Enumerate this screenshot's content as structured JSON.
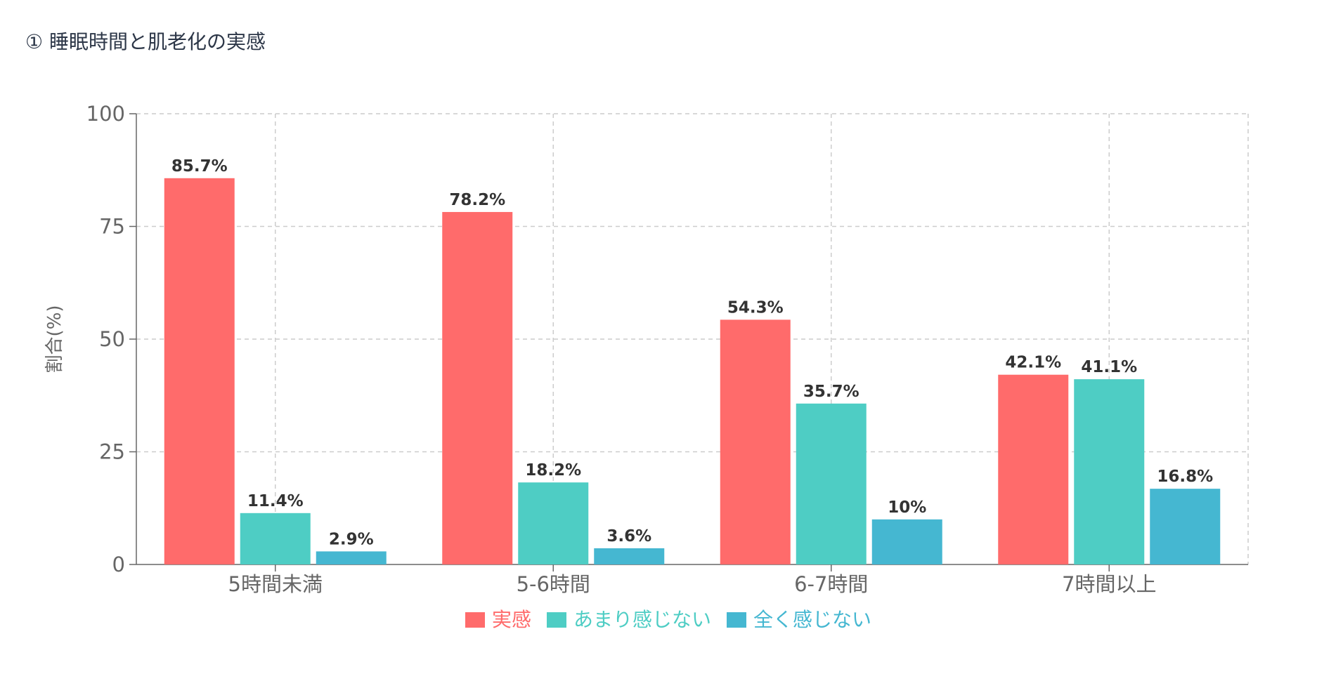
{
  "page": {
    "title": "① 睡眠時間と肌老化の実感"
  },
  "chart_data": {
    "type": "bar",
    "title": "① 睡眠時間と肌老化の実感",
    "xlabel": "",
    "ylabel": "割合(%)",
    "ylim": [
      0,
      100
    ],
    "yticks": [
      "0",
      "25",
      "50",
      "75",
      "100"
    ],
    "categories": [
      "5時間未満",
      "5-6時間",
      "6-7時間",
      "7時間以上"
    ],
    "grid": true,
    "legend_position": "bottom-center",
    "series": [
      {
        "name": "実感",
        "color": "#ff6b6b",
        "values": [
          85.7,
          78.2,
          54.3,
          42.1
        ],
        "labels": [
          "85.7%",
          "78.2%",
          "54.3%",
          "42.1%"
        ]
      },
      {
        "name": "あまり感じない",
        "color": "#4ecdc4",
        "values": [
          11.4,
          18.2,
          35.7,
          41.1
        ],
        "labels": [
          "11.4%",
          "18.2%",
          "35.7%",
          "41.1%"
        ]
      },
      {
        "name": "全く感じない",
        "color": "#45b7d1",
        "values": [
          2.9,
          3.6,
          10,
          16.8
        ],
        "labels": [
          "2.9%",
          "3.6%",
          "10%",
          "16.8%"
        ]
      }
    ]
  }
}
